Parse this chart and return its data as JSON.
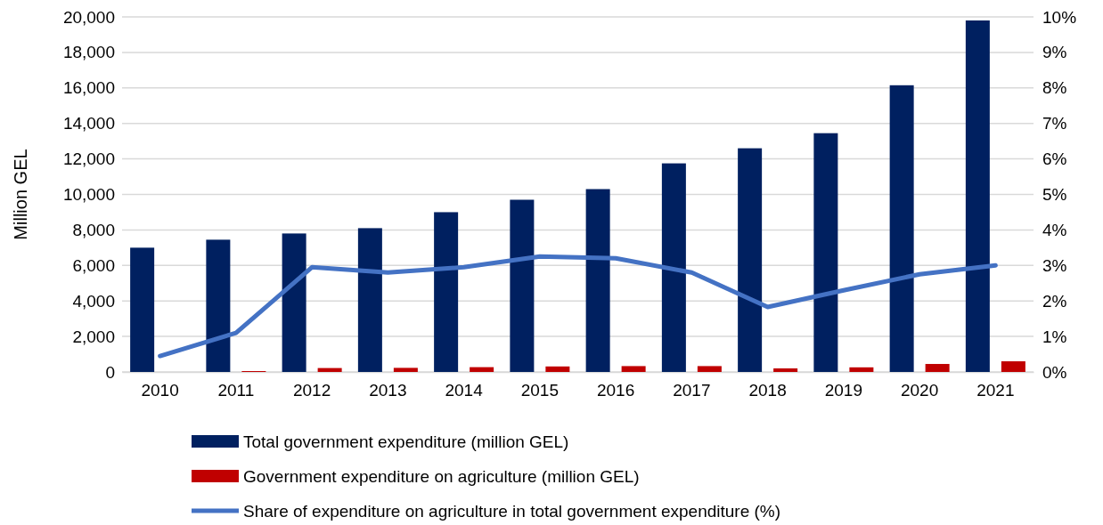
{
  "chart_data": {
    "type": "bar",
    "ylabel": "Million GEL",
    "categories": [
      "2010",
      "2011",
      "2012",
      "2013",
      "2014",
      "2015",
      "2016",
      "2017",
      "2018",
      "2019",
      "2020",
      "2021"
    ],
    "series": [
      {
        "name": "Total government expenditure (million GEL)",
        "color": "#002060",
        "values": [
          7000,
          7450,
          7800,
          8100,
          9000,
          9700,
          10300,
          11750,
          12600,
          13450,
          16150,
          19800
        ]
      },
      {
        "name": "Government expenditure on agriculture (million GEL)",
        "color": "#c00000",
        "values": [
          null,
          50,
          220,
          230,
          270,
          310,
          330,
          330,
          200,
          260,
          450,
          600
        ]
      },
      {
        "name": "Share of expenditure on agriculture in total government expenditure (%)",
        "type": "line",
        "axis": "y2",
        "color": "#4472c4",
        "values": [
          0.45,
          1.1,
          2.95,
          2.8,
          2.95,
          3.25,
          3.2,
          2.8,
          1.83,
          2.3,
          2.75,
          3.0
        ]
      }
    ],
    "ylim": [
      0,
      20000
    ],
    "yticks": [
      {
        "value": 0,
        "label": "0"
      },
      {
        "value": 2000,
        "label": "2,000"
      },
      {
        "value": 4000,
        "label": "4,000"
      },
      {
        "value": 6000,
        "label": "6,000"
      },
      {
        "value": 8000,
        "label": "8,000"
      },
      {
        "value": 10000,
        "label": "10,000"
      },
      {
        "value": 12000,
        "label": "12,000"
      },
      {
        "value": 14000,
        "label": "14,000"
      },
      {
        "value": 16000,
        "label": "16,000"
      },
      {
        "value": 18000,
        "label": "18,000"
      },
      {
        "value": 20000,
        "label": "20,000"
      }
    ],
    "y2lim": [
      0,
      10
    ],
    "y2ticks": [
      {
        "value": 0,
        "label": "0%"
      },
      {
        "value": 1,
        "label": "1%"
      },
      {
        "value": 2,
        "label": "2%"
      },
      {
        "value": 3,
        "label": "3%"
      },
      {
        "value": 4,
        "label": "4%"
      },
      {
        "value": 5,
        "label": "5%"
      },
      {
        "value": 6,
        "label": "6%"
      },
      {
        "value": 7,
        "label": "7%"
      },
      {
        "value": 8,
        "label": "8%"
      },
      {
        "value": 9,
        "label": "9%"
      },
      {
        "value": 10,
        "label": "10%"
      }
    ],
    "grid": "y",
    "legend": "bottom",
    "line_style": "solid",
    "marker": "none"
  }
}
